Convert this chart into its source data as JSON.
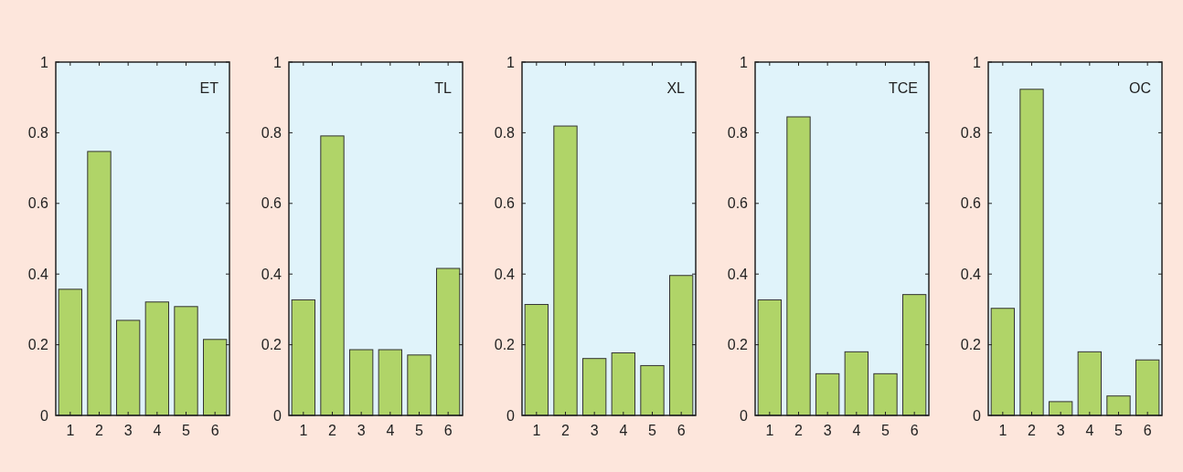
{
  "chart_data": [
    {
      "type": "bar",
      "title": "ET",
      "categories": [
        "1",
        "2",
        "3",
        "4",
        "5",
        "6"
      ],
      "values": [
        0.357,
        0.747,
        0.269,
        0.321,
        0.308,
        0.215
      ],
      "color": "#b0d468",
      "ylim": [
        0,
        1
      ],
      "yticks": [
        0,
        0.2,
        0.4,
        0.6,
        0.8,
        1
      ]
    },
    {
      "type": "bar",
      "title": "TL",
      "categories": [
        "1",
        "2",
        "3",
        "4",
        "5",
        "6"
      ],
      "values": [
        0.327,
        0.791,
        0.186,
        0.186,
        0.171,
        0.416
      ],
      "color": "#b0d468",
      "ylim": [
        0,
        1
      ],
      "yticks": [
        0,
        0.2,
        0.4,
        0.6,
        0.8,
        1
      ]
    },
    {
      "type": "bar",
      "title": "XL",
      "categories": [
        "1",
        "2",
        "3",
        "4",
        "5",
        "6"
      ],
      "values": [
        0.314,
        0.819,
        0.161,
        0.177,
        0.141,
        0.396
      ],
      "color": "#b0d468",
      "ylim": [
        0,
        1
      ],
      "yticks": [
        0,
        0.2,
        0.4,
        0.6,
        0.8,
        1
      ]
    },
    {
      "type": "bar",
      "title": "TCE",
      "categories": [
        "1",
        "2",
        "3",
        "4",
        "5",
        "6"
      ],
      "values": [
        0.327,
        0.845,
        0.118,
        0.18,
        0.118,
        0.342
      ],
      "color": "#b0d468",
      "ylim": [
        0,
        1
      ],
      "yticks": [
        0,
        0.2,
        0.4,
        0.6,
        0.8,
        1
      ]
    },
    {
      "type": "bar",
      "title": "OC",
      "categories": [
        "1",
        "2",
        "3",
        "4",
        "5",
        "6"
      ],
      "values": [
        0.303,
        0.923,
        0.039,
        0.18,
        0.055,
        0.157
      ],
      "color": "#b0d468",
      "ylim": [
        0,
        1
      ],
      "yticks": [
        0,
        0.2,
        0.4,
        0.6,
        0.8,
        1
      ]
    }
  ]
}
